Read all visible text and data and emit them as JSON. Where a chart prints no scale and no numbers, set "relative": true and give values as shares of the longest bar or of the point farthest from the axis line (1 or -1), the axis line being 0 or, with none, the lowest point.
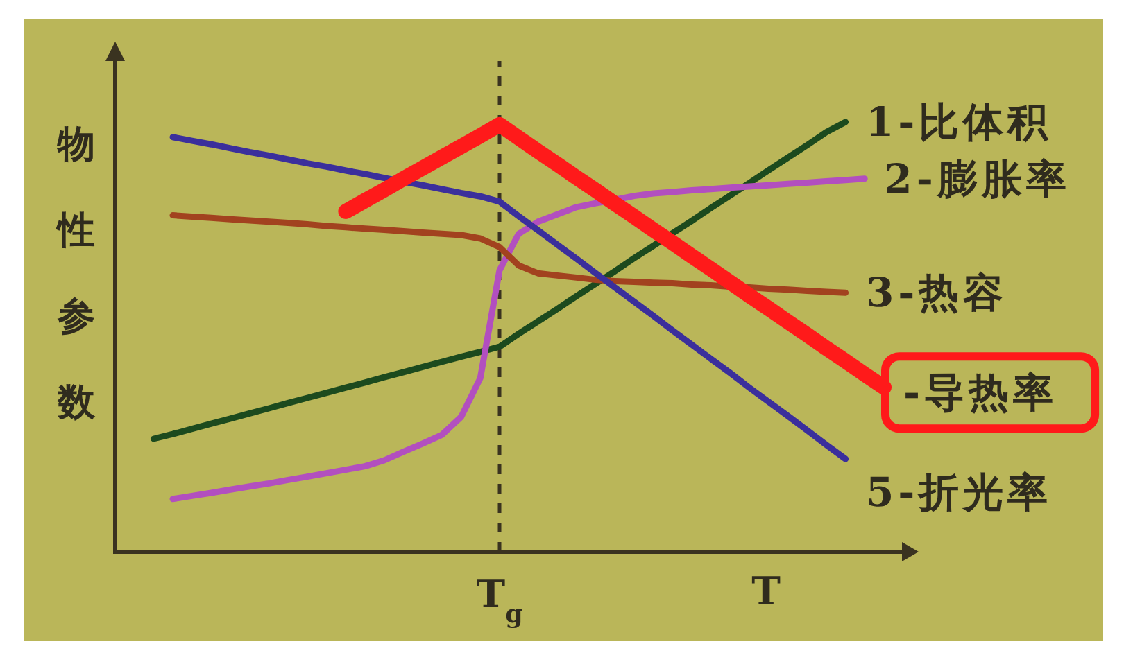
{
  "chart_data": {
    "type": "line",
    "relative": true,
    "ylabel": "物性参数",
    "xlabel": "T",
    "categories": [
      null,
      null,
      null,
      null,
      null,
      null,
      null,
      null,
      null,
      null,
      null,
      null,
      null,
      null,
      null,
      null,
      null,
      null,
      null,
      null,
      null,
      null,
      null,
      null,
      null,
      null,
      null,
      null,
      null,
      null,
      null,
      null,
      null,
      null,
      null,
      null,
      null,
      null,
      null,
      null,
      null
    ],
    "annotations": [
      "T$_{g}$"
    ],
    "series": [
      {
        "name": "1-比体积",
        "color": "#1c4a1e",
        "values": [
          null,
          null,
          0.263,
          0.274,
          0.286,
          0.298,
          0.31,
          0.322,
          0.334,
          0.346,
          0.358,
          0.37,
          0.382,
          0.394,
          0.406,
          0.418,
          0.43,
          0.442,
          0.454,
          0.465,
          0.477,
          0.507,
          0.536,
          0.565,
          0.595,
          0.624,
          0.653,
          0.683,
          0.712,
          0.741,
          0.77,
          0.8,
          0.829,
          0.858,
          0.888,
          0.917,
          0.946,
          0.976,
          1.0,
          null,
          null
        ]
      },
      {
        "name": "2-膨胀率",
        "color": "#b24fbf",
        "values": [
          null,
          null,
          null,
          0.123,
          0.13,
          0.137,
          0.145,
          0.152,
          0.159,
          0.167,
          0.175,
          0.183,
          0.191,
          0.199,
          0.213,
          0.233,
          0.252,
          0.272,
          0.314,
          0.404,
          0.655,
          0.74,
          0.768,
          0.785,
          0.802,
          0.811,
          0.819,
          0.828,
          0.834,
          0.837,
          0.841,
          0.844,
          0.847,
          0.85,
          0.853,
          0.856,
          0.859,
          0.862,
          0.865,
          0.868,
          null
        ]
      },
      {
        "name": "3-热容",
        "color": "#a2421f",
        "values": [
          null,
          null,
          null,
          0.783,
          0.78,
          0.777,
          0.774,
          0.771,
          0.768,
          0.765,
          0.762,
          0.758,
          0.755,
          0.752,
          0.749,
          0.746,
          0.743,
          0.74,
          0.737,
          0.729,
          0.709,
          0.666,
          0.648,
          0.643,
          0.638,
          0.633,
          0.63,
          0.628,
          0.626,
          0.625,
          0.622,
          0.62,
          0.617,
          0.615,
          0.612,
          0.61,
          0.607,
          0.605,
          0.603,
          null,
          null
        ]
      },
      {
        "name": "5-折光率",
        "color": "#3b2f9c",
        "values": [
          null,
          null,
          null,
          0.965,
          0.956,
          0.948,
          0.939,
          0.93,
          0.922,
          0.913,
          0.904,
          0.896,
          0.887,
          0.879,
          0.87,
          0.861,
          0.853,
          0.844,
          0.835,
          0.827,
          0.815,
          0.781,
          0.748,
          0.715,
          0.682,
          0.648,
          0.615,
          0.582,
          0.549,
          0.515,
          0.482,
          0.449,
          0.416,
          0.382,
          0.349,
          0.316,
          0.283,
          0.249,
          0.216,
          null,
          null
        ]
      },
      {
        "name": "-导热率",
        "color": "#ff1a1a",
        "values": [
          null,
          null,
          null,
          null,
          null,
          null,
          null,
          null,
          null,
          null,
          null,
          null,
          0.792,
          0.817,
          0.842,
          0.868,
          0.893,
          0.918,
          0.943,
          0.968,
          0.994,
          0.963,
          0.932,
          0.902,
          0.871,
          0.841,
          0.81,
          0.78,
          0.749,
          0.719,
          0.688,
          0.658,
          0.627,
          0.596,
          0.566,
          0.535,
          0.505,
          0.474,
          0.444,
          0.413,
          0.383
        ]
      }
    ]
  }
}
